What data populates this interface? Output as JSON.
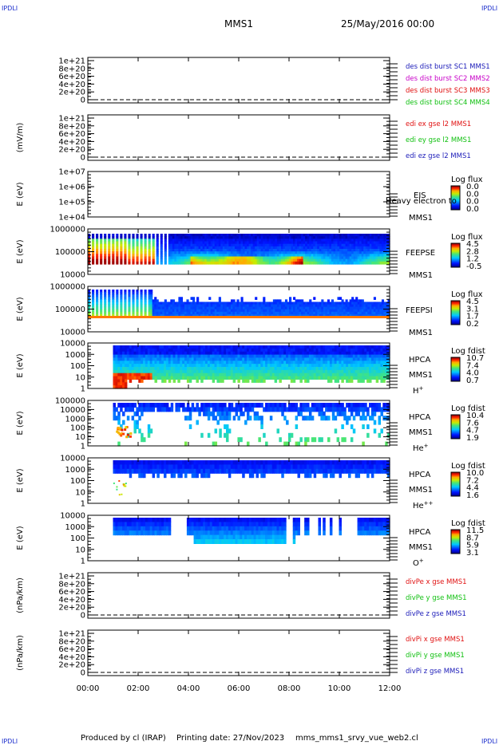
{
  "page": {
    "corner_label": "IPDLI",
    "title": "MMS1",
    "datetime": "25/May/2016 00:00",
    "footer": {
      "producer": "Produced by cl (IRAP)",
      "printing": "Printing date: 27/Nov/2023",
      "script": "mms_mms1_srvy_vue_web2.cl"
    }
  },
  "colors": {
    "mms1": "#1a1ab8",
    "mms2": "#c800c8",
    "mms3": "#e01010",
    "mms4": "#10c010",
    "x": "#e01010",
    "y": "#10c010",
    "z": "#1a1ab8"
  },
  "chart_data": {
    "type": "multi-panel time series",
    "x_ticks": [
      "00:00",
      "02:00",
      "04:00",
      "06:00",
      "08:00",
      "10:00",
      "12:00"
    ],
    "x_range_hours": [
      0,
      12
    ],
    "panels": [
      {
        "id": "p1",
        "kind": "line",
        "ylabel": "",
        "yticks": [
          "1e+21",
          "8e+20",
          "6e+20",
          "4e+20",
          "2e+20",
          "0"
        ],
        "legend": [
          {
            "text": "des dist burst SC1 MMS1",
            "color": "mms1"
          },
          {
            "text": "des dist burst SC2 MMS2",
            "color": "mms2"
          },
          {
            "text": "des dist burst SC3 MMS3",
            "color": "mms3"
          },
          {
            "text": "des dist burst SC4 MMS4",
            "color": "mms4"
          }
        ]
      },
      {
        "id": "p2",
        "kind": "line",
        "ylabel": "(mV/m)",
        "yticks": [
          "1e+21",
          "8e+20",
          "6e+20",
          "4e+20",
          "2e+20",
          "0"
        ],
        "legend": [
          {
            "text": "edi ex gse l2 MMS1",
            "color": "x"
          },
          {
            "text": "edi ey gse l2 MMS1",
            "color": "y"
          },
          {
            "text": "edi ez gse l2 MMS1",
            "color": "z"
          }
        ]
      },
      {
        "id": "p3",
        "kind": "spec",
        "ylabel": "E (eV)",
        "yticks": [
          "1e+07",
          "1e+06",
          "1e+05",
          "1e+04"
        ],
        "name": [
          "EIS"
        ],
        "overlay": "Heavy electron to",
        "sc": "MMS1",
        "cbar_title": "Log flux",
        "cbar_ticks": [
          "0.0",
          "0.0",
          "0.0",
          "0.0"
        ],
        "sup": ""
      },
      {
        "id": "p4",
        "kind": "spec",
        "ylabel": "E (eV)",
        "yticks": [
          "1000000",
          "100000",
          "10000"
        ],
        "name": [
          "FEEPSE"
        ],
        "overlay": "",
        "sc": "MMS1",
        "cbar_title": "Log flux",
        "cbar_ticks": [
          "4.5",
          "2.8",
          "1.2",
          "-0.5"
        ],
        "sup": ""
      },
      {
        "id": "p5",
        "kind": "spec",
        "ylabel": "E (eV)",
        "yticks": [
          "1000000",
          "100000",
          "10000"
        ],
        "name": [
          "FEEPSI"
        ],
        "overlay": "",
        "sc": "MMS1",
        "cbar_title": "Log flux",
        "cbar_ticks": [
          "4.5",
          "3.1",
          "1.7",
          "0.2"
        ],
        "sup": ""
      },
      {
        "id": "p6",
        "kind": "spec",
        "ylabel": "E (eV)",
        "yticks": [
          "10000",
          "1000",
          "100",
          "10",
          "1"
        ],
        "name": [
          "HPCA",
          "MMS1"
        ],
        "overlay": "",
        "sc": "",
        "cbar_title": "Log fdist",
        "cbar_ticks": [
          "10.7",
          "7.4",
          "4.0",
          "0.7"
        ],
        "sup": "H+"
      },
      {
        "id": "p7",
        "kind": "spec",
        "ylabel": "E (eV)",
        "yticks": [
          "100000",
          "10000",
          "1000",
          "100",
          "10",
          "1"
        ],
        "name": [
          "HPCA",
          "MMS1"
        ],
        "overlay": "",
        "sc": "",
        "cbar_title": "Log fdist",
        "cbar_ticks": [
          "10.4",
          "7.6",
          "4.7",
          "1.9"
        ],
        "sup": "He+"
      },
      {
        "id": "p8",
        "kind": "spec",
        "ylabel": "E (eV)",
        "yticks": [
          "10000",
          "1000",
          "100",
          "10",
          "1"
        ],
        "name": [
          "HPCA",
          "MMS1"
        ],
        "overlay": "",
        "sc": "",
        "cbar_title": "Log fdist",
        "cbar_ticks": [
          "10.0",
          "7.2",
          "4.4",
          "1.6"
        ],
        "sup": "He++"
      },
      {
        "id": "p9",
        "kind": "spec",
        "ylabel": "E (eV)",
        "yticks": [
          "10000",
          "1000",
          "100",
          "10",
          "1"
        ],
        "name": [
          "HPCA",
          "MMS1"
        ],
        "overlay": "",
        "sc": "",
        "cbar_title": "Log fdist",
        "cbar_ticks": [
          "11.5",
          "8.7",
          "5.9",
          "3.1"
        ],
        "sup": "O+"
      },
      {
        "id": "p10",
        "kind": "line",
        "ylabel": "(nPa/km)",
        "yticks": [
          "1e+21",
          "8e+20",
          "6e+20",
          "4e+20",
          "2e+20",
          "0"
        ],
        "legend": [
          {
            "text": "divPe x gse MMS1",
            "color": "x"
          },
          {
            "text": "divPe y gse MMS1",
            "color": "y"
          },
          {
            "text": "divPe z gse MMS1",
            "color": "z"
          }
        ]
      },
      {
        "id": "p11",
        "kind": "line",
        "ylabel": "(nPa/km)",
        "yticks": [
          "1e+21",
          "8e+20",
          "6e+20",
          "4e+20",
          "2e+20",
          "0"
        ],
        "legend": [
          {
            "text": "divPi x gse MMS1",
            "color": "x"
          },
          {
            "text": "divPi y gse MMS1",
            "color": "y"
          },
          {
            "text": "divPi z gse MMS1",
            "color": "z"
          }
        ]
      }
    ]
  }
}
